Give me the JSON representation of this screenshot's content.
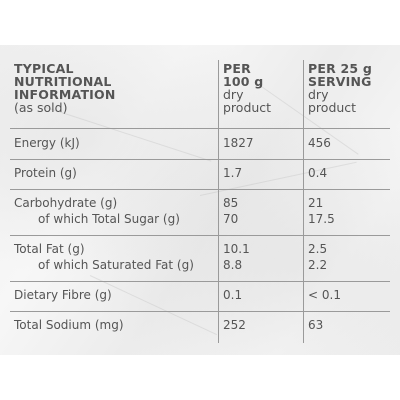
{
  "table": {
    "header": {
      "col1_bold": [
        "TYPICAL",
        "NUTRITIONAL",
        "INFORMATION"
      ],
      "col1_light": "(as sold)",
      "col2_bold": [
        "PER",
        "100 g"
      ],
      "col2_light": [
        "dry",
        "product"
      ],
      "col3_bold": [
        "PER 25 g",
        "SERVING"
      ],
      "col3_light": [
        "dry",
        "product"
      ]
    },
    "rows": [
      {
        "label": "Energy (kJ)",
        "per100": "1827",
        "perServing": "456"
      },
      {
        "label": "Protein (g)",
        "per100": "1.7",
        "perServing": "0.4"
      },
      {
        "label": "Carbohydrate (g)",
        "per100": "85",
        "perServing": "21",
        "sub_label": "of which Total Sugar (g)",
        "sub_per100": "70",
        "sub_perServing": "17.5"
      },
      {
        "label": "Total Fat (g)",
        "per100": "10.1",
        "perServing": "2.5",
        "sub_label": "of which Saturated Fat (g)",
        "sub_per100": "8.8",
        "sub_perServing": "2.2"
      },
      {
        "label": "Dietary Fibre (g)",
        "per100": "0.1",
        "perServing": "< 0.1"
      },
      {
        "label": "Total Sodium (mg)",
        "per100": "252",
        "perServing": "63"
      }
    ]
  },
  "colors": {
    "text": "#555555",
    "rule": "#9a9a9a",
    "background": "#f3f3f3"
  }
}
